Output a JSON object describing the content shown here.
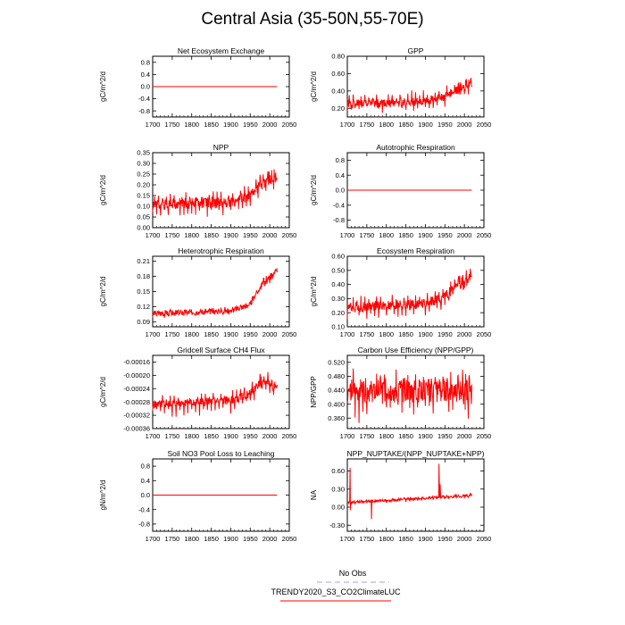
{
  "figure": {
    "title": "Central Asia (35-50N,55-70E)"
  },
  "legend": {
    "obs_label": "No Obs",
    "obs_color": "#a0a0f0",
    "model_label": "TRENDY2020_S3_CO2ClimateLUC",
    "model_color": "#ff0000"
  },
  "chart_data": [
    {
      "type": "line",
      "id": "nee",
      "title": "Net Ecosystem Exchange",
      "ylabel": "gC/m^2/d",
      "xlim": [
        1700,
        2050
      ],
      "xticks": [
        1700,
        1750,
        1800,
        1850,
        1900,
        1950,
        2000,
        2050
      ],
      "ylim": [
        -1.0,
        1.0
      ],
      "yticks": [
        -0.8,
        -0.4,
        0.0,
        0.4,
        0.8
      ],
      "ytick_labels": [
        "-0.8",
        "-0.4",
        "0.0",
        "0.4",
        "0.8"
      ],
      "series": [
        {
          "name": "TRENDY2020_S3_CO2ClimateLUC",
          "kind": "flat",
          "value": 0.0
        }
      ]
    },
    {
      "type": "line",
      "id": "gpp",
      "title": "GPP",
      "ylabel": "gC/m^2/d",
      "xlim": [
        1700,
        2050
      ],
      "xticks": [
        1700,
        1750,
        1800,
        1850,
        1900,
        1950,
        2000,
        2050
      ],
      "ylim": [
        0.1,
        0.8
      ],
      "yticks": [
        0.2,
        0.4,
        0.6,
        0.8
      ],
      "ytick_labels": [
        "0.20",
        "0.40",
        "0.60",
        "0.80"
      ],
      "series": [
        {
          "name": "TRENDY2020_S3_CO2ClimateLUC",
          "kind": "variable",
          "anchors": [
            [
              1700,
              0.25
            ],
            [
              1900,
              0.28
            ],
            [
              1950,
              0.33
            ],
            [
              1980,
              0.42
            ],
            [
              2019,
              0.48
            ]
          ],
          "amp": 0.05,
          "spike_up": 0.09,
          "spike_down": 0.08,
          "seed": 1
        }
      ]
    },
    {
      "type": "line",
      "id": "npp",
      "title": "NPP",
      "ylabel": "gC/m^2/d",
      "xlim": [
        1700,
        2050
      ],
      "xticks": [
        1700,
        1750,
        1800,
        1850,
        1900,
        1950,
        2000,
        2050
      ],
      "ylim": [
        0.0,
        0.35
      ],
      "yticks": [
        0.0,
        0.05,
        0.1,
        0.15,
        0.2,
        0.25,
        0.3,
        0.35
      ],
      "ytick_labels": [
        "0.00",
        "0.05",
        "0.10",
        "0.15",
        "0.20",
        "0.25",
        "0.30",
        "0.35"
      ],
      "series": [
        {
          "name": "TRENDY2020_S3_CO2ClimateLUC",
          "kind": "variable",
          "anchors": [
            [
              1700,
              0.11
            ],
            [
              1900,
              0.12
            ],
            [
              1950,
              0.15
            ],
            [
              1980,
              0.21
            ],
            [
              2019,
              0.24
            ]
          ],
          "amp": 0.025,
          "spike_up": 0.04,
          "spike_down": 0.05,
          "seed": 2
        }
      ]
    },
    {
      "type": "line",
      "id": "ar",
      "title": "Autotrophic Respiration",
      "ylabel": "gC/m^2/d",
      "xlim": [
        1700,
        2050
      ],
      "xticks": [
        1700,
        1750,
        1800,
        1850,
        1900,
        1950,
        2000,
        2050
      ],
      "ylim": [
        -1.0,
        1.0
      ],
      "yticks": [
        -0.8,
        -0.4,
        0.0,
        0.4,
        0.8
      ],
      "ytick_labels": [
        "-0.8",
        "-0.4",
        "0.0",
        "0.4",
        "0.8"
      ],
      "series": [
        {
          "name": "TRENDY2020_S3_CO2ClimateLUC",
          "kind": "flat",
          "value": 0.0
        }
      ]
    },
    {
      "type": "line",
      "id": "hr",
      "title": "Heterotrophic Respiration",
      "ylabel": "gC/m^2/d",
      "xlim": [
        1700,
        2050
      ],
      "xticks": [
        1700,
        1750,
        1800,
        1850,
        1900,
        1950,
        2000,
        2050
      ],
      "ylim": [
        0.08,
        0.22
      ],
      "yticks": [
        0.09,
        0.12,
        0.15,
        0.18,
        0.21
      ],
      "ytick_labels": [
        "0.09",
        "0.12",
        "0.15",
        "0.18",
        "0.21"
      ],
      "series": [
        {
          "name": "TRENDY2020_S3_CO2ClimateLUC",
          "kind": "variable",
          "anchors": [
            [
              1700,
              0.106
            ],
            [
              1900,
              0.112
            ],
            [
              1950,
              0.125
            ],
            [
              1980,
              0.165
            ],
            [
              2019,
              0.19
            ]
          ],
          "amp": 0.006,
          "spike_up": 0.004,
          "spike_down": 0.004,
          "seed": 3
        }
      ]
    },
    {
      "type": "line",
      "id": "er",
      "title": "Ecosystem Respiration",
      "ylabel": "gC/m^2/d",
      "xlim": [
        1700,
        2050
      ],
      "xticks": [
        1700,
        1750,
        1800,
        1850,
        1900,
        1950,
        2000,
        2050
      ],
      "ylim": [
        0.1,
        0.6
      ],
      "yticks": [
        0.1,
        0.2,
        0.3,
        0.4,
        0.5,
        0.6
      ],
      "ytick_labels": [
        "0.10",
        "0.20",
        "0.30",
        "0.40",
        "0.50",
        "0.60"
      ],
      "series": [
        {
          "name": "TRENDY2020_S3_CO2ClimateLUC",
          "kind": "variable",
          "anchors": [
            [
              1700,
              0.24
            ],
            [
              1900,
              0.26
            ],
            [
              1950,
              0.31
            ],
            [
              1980,
              0.4
            ],
            [
              2019,
              0.45
            ]
          ],
          "amp": 0.035,
          "spike_up": 0.06,
          "spike_down": 0.06,
          "seed": 4
        }
      ]
    },
    {
      "type": "line",
      "id": "ch4",
      "title": "Gridcell Surface CH4 Flux",
      "ylabel": "gC/m^2/d",
      "xlim": [
        1700,
        2050
      ],
      "xticks": [
        1700,
        1750,
        1800,
        1850,
        1900,
        1950,
        2000,
        2050
      ],
      "ylim": [
        -0.00036,
        -0.00014
      ],
      "yticks": [
        -0.00036,
        -0.00032,
        -0.00028,
        -0.00024,
        -0.0002,
        -0.00016
      ],
      "ytick_labels": [
        "-0.00036",
        "-0.00032",
        "-0.00028",
        "-0.00024",
        "-0.00020",
        "-0.00016"
      ],
      "series": [
        {
          "name": "TRENDY2020_S3_CO2ClimateLUC",
          "kind": "variable",
          "anchors": [
            [
              1700,
              -0.000288
            ],
            [
              1900,
              -0.000275
            ],
            [
              1950,
              -0.000255
            ],
            [
              1980,
              -0.000215
            ],
            [
              2019,
              -0.000235
            ]
          ],
          "amp": 1.2e-05,
          "spike_up": 2e-05,
          "spike_down": 3.5e-05,
          "seed": 5
        }
      ]
    },
    {
      "type": "line",
      "id": "cue",
      "title": "Carbon Use Efficiency (NPP/GPP)",
      "ylabel": "NPP/GPP",
      "xlim": [
        1700,
        2050
      ],
      "xticks": [
        1700,
        1750,
        1800,
        1850,
        1900,
        1950,
        2000,
        2050
      ],
      "ylim": [
        0.33,
        0.54
      ],
      "yticks": [
        0.36,
        0.4,
        0.44,
        0.48,
        0.52
      ],
      "ytick_labels": [
        "0.360",
        "0.400",
        "0.440",
        "0.480",
        "0.520"
      ],
      "series": [
        {
          "name": "TRENDY2020_S3_CO2ClimateLUC",
          "kind": "variable",
          "anchors": [
            [
              1700,
              0.44
            ],
            [
              1900,
              0.44
            ],
            [
              1980,
              0.445
            ],
            [
              2019,
              0.43
            ]
          ],
          "amp": 0.035,
          "spike_up": 0.04,
          "spike_down": 0.06,
          "seed": 6
        }
      ]
    },
    {
      "type": "line",
      "id": "no3",
      "title": "Soil NO3 Pool Loss to Leaching",
      "ylabel": "gN/m^2/d",
      "xlim": [
        1700,
        2050
      ],
      "xticks": [
        1700,
        1750,
        1800,
        1850,
        1900,
        1950,
        2000,
        2050
      ],
      "ylim": [
        -1.0,
        1.0
      ],
      "yticks": [
        -0.8,
        -0.4,
        0.0,
        0.4,
        0.8
      ],
      "ytick_labels": [
        "-0.8",
        "-0.4",
        "0.0",
        "0.4",
        "0.8"
      ],
      "series": [
        {
          "name": "TRENDY2020_S3_CO2ClimateLUC",
          "kind": "flat",
          "value": 0.0
        }
      ]
    },
    {
      "type": "line",
      "id": "nuptake",
      "title": "NPP_NUPTAKE/(NPP_NUPTAKE+NPP)",
      "ylabel": "NA",
      "xlim": [
        1700,
        2050
      ],
      "xticks": [
        1700,
        1750,
        1800,
        1850,
        1900,
        1950,
        2000,
        2050
      ],
      "ylim": [
        -0.4,
        0.8
      ],
      "yticks": [
        -0.3,
        0.0,
        0.3,
        0.6
      ],
      "ytick_labels": [
        "-0.30",
        "0.00",
        "0.30",
        "0.60"
      ],
      "series": [
        {
          "name": "TRENDY2020_S3_CO2ClimateLUC",
          "kind": "variable",
          "anchors": [
            [
              1700,
              0.08
            ],
            [
              1900,
              0.15
            ],
            [
              2019,
              0.2
            ]
          ],
          "amp": 0.02,
          "spike_up": 0.01,
          "spike_down": 0.03,
          "seed": 7,
          "events": [
            [
              1707,
              0.65
            ],
            [
              1708,
              -0.05
            ],
            [
              1762,
              -0.2
            ],
            [
              1935,
              0.72
            ],
            [
              1938,
              0.38
            ]
          ]
        }
      ]
    }
  ]
}
